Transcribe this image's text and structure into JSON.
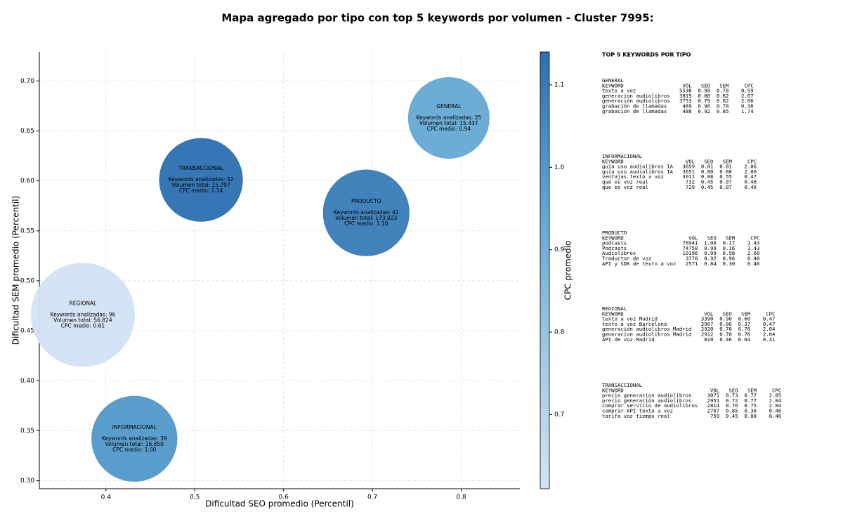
{
  "chart_data": {
    "type": "bubble",
    "title": "Mapa agregado por tipo con top 5 keywords por volumen - Cluster 7995:",
    "xlabel": "Dificultad SEO promedio (Percentil)",
    "ylabel": "Dificultad SEM promedio (Percentil)",
    "xlim": [
      0.325,
      0.866
    ],
    "ylim": [
      0.292,
      0.729
    ],
    "xticks": [
      0.4,
      0.5,
      0.6,
      0.7,
      0.8
    ],
    "yticks": [
      {
        "value": 0.3,
        "label": "0.30"
      },
      0.35,
      {
        "value": 0.4,
        "label": "0.40"
      },
      0.45,
      {
        "value": 0.5,
        "label": "0.50"
      },
      0.55,
      {
        "value": 0.6,
        "label": "0.60"
      },
      0.65,
      {
        "value": 0.7,
        "label": "0.70"
      }
    ],
    "grid": true,
    "points": [
      {
        "name": "GENERAL",
        "x": 0.786,
        "y": 0.663,
        "keywords": 25,
        "volume": 15437,
        "cpc": 0.94,
        "labels": [
          "Keywords analizadas: 25",
          "Volumen total: 15.437",
          "CPC medio: 0.94"
        ]
      },
      {
        "name": "TRANSACCIONAL",
        "x": 0.507,
        "y": 0.601,
        "keywords": 32,
        "volume": 15797,
        "cpc": 1.14,
        "labels": [
          "Keywords analizadas: 32",
          "Volumen total: 15.797",
          "CPC medio: 1.14"
        ]
      },
      {
        "name": "PRODUCTO",
        "x": 0.693,
        "y": 0.568,
        "keywords": 41,
        "volume": 173023,
        "cpc": 1.1,
        "labels": [
          "Keywords analizadas: 41",
          "Volumen total: 173.023",
          "CPC medio: 1.10"
        ]
      },
      {
        "name": "REGIONAL",
        "x": 0.374,
        "y": 0.466,
        "keywords": 96,
        "volume": 56824,
        "cpc": 0.61,
        "labels": [
          "Keywords analizadas: 96",
          "Volumen total: 56.824",
          "CPC medio: 0.61"
        ]
      },
      {
        "name": "INFORMACIONAL",
        "x": 0.432,
        "y": 0.342,
        "keywords": 39,
        "volume": 16850,
        "cpc": 1.0,
        "labels": [
          "Keywords analizadas: 39",
          "Volumen total: 16.850",
          "CPC medio: 1.00"
        ]
      }
    ],
    "colorbar": {
      "label": "CPC promedio",
      "lim": [
        0.61,
        1.14
      ],
      "ticks": [
        0.7,
        0.8,
        0.9,
        {
          "value": 1,
          "label": "1.0"
        },
        1.1
      ],
      "colormap": [
        "#d3e3f3",
        "#9cc7e3",
        "#5ba3d0",
        "#2c6fb0"
      ]
    }
  },
  "panel": {
    "title": "TOP 5 KEYWORDS POR TIPO",
    "header": [
      "KEYWORD",
      "VOL",
      "SEO",
      "SEM",
      "CPC"
    ],
    "groups": [
      {
        "name": "GENERAL",
        "rows": [
          [
            "texto a voz",
            "5538",
            "0.98",
            "0.78",
            "0.59"
          ],
          [
            "generacion audiolibros",
            "3815",
            "0.80",
            "0.82",
            "2.07"
          ],
          [
            "generación audiolibros",
            "3753",
            "0.79",
            "0.82",
            "2.06"
          ],
          [
            "grabación de llamadas",
            "489",
            "0.96",
            "0.78",
            "0.36"
          ],
          [
            "grabacion de llamadas",
            "488",
            "0.92",
            "0.85",
            "1.74"
          ]
        ]
      },
      {
        "name": "INFORMACIONAL",
        "rows": [
          [
            "guia uso audiolibros IA",
            "3659",
            "0.81",
            "0.81",
            "2.06"
          ],
          [
            "guía uso audiolibros IA",
            "3651",
            "0.80",
            "0.80",
            "2.06"
          ],
          [
            "ventajas texto a voz",
            "3011",
            "0.88",
            "0.55",
            "0.47"
          ],
          [
            "qué es voz real",
            "732",
            "0.45",
            "0.07",
            "0.46"
          ],
          [
            "que es voz real",
            "729",
            "0.45",
            "0.07",
            "0.46"
          ]
        ]
      },
      {
        "name": "PRODUCTO",
        "rows": [
          [
            "podcasts",
            "76941",
            "1.00",
            "0.17",
            "1.43"
          ],
          [
            "Podcasts",
            "74758",
            "0.99",
            "0.16",
            "1.43"
          ],
          [
            "Audiolibros",
            "10196",
            "0.99",
            "0.98",
            "2.60"
          ],
          [
            "Traductor de voz",
            "3778",
            "0.92",
            "0.96",
            "0.40"
          ],
          [
            "API y SDK de texto a voz",
            "2571",
            "0.84",
            "0.30",
            "0.46"
          ]
        ]
      },
      {
        "name": "REGIONAL",
        "rows": [
          [
            "texto a voz Madrid",
            "3390",
            "0.90",
            "0.60",
            "0.47"
          ],
          [
            "texto a voz Barcelona",
            "2967",
            "0.86",
            "0.37",
            "0.47"
          ],
          [
            "generación audiolibros Madrid",
            "2920",
            "0.70",
            "0.76",
            "2.04"
          ],
          [
            "generacion audiolibros Madrid",
            "2912",
            "0.70",
            "0.76",
            "2.04"
          ],
          [
            "API de voz Madrid",
            "810",
            "0.46",
            "0.64",
            "0.31"
          ]
        ]
      },
      {
        "name": "TRANSACCIONAL",
        "rows": [
          [
            "precio generacion audiolibros",
            "3071",
            "0.73",
            "0.77",
            "2.05"
          ],
          [
            "precio generación audiolibros",
            "2951",
            "0.72",
            "0.77",
            "2.04"
          ],
          [
            "comprar servicio de audiolibros",
            "2814",
            "0.76",
            "0.75",
            "2.04"
          ],
          [
            "comprar API texto a voz",
            "2707",
            "0.85",
            "0.36",
            "0.46"
          ],
          [
            "tarifa voz tiempo real",
            "759",
            "0.45",
            "0.08",
            "0.46"
          ]
        ]
      }
    ]
  }
}
